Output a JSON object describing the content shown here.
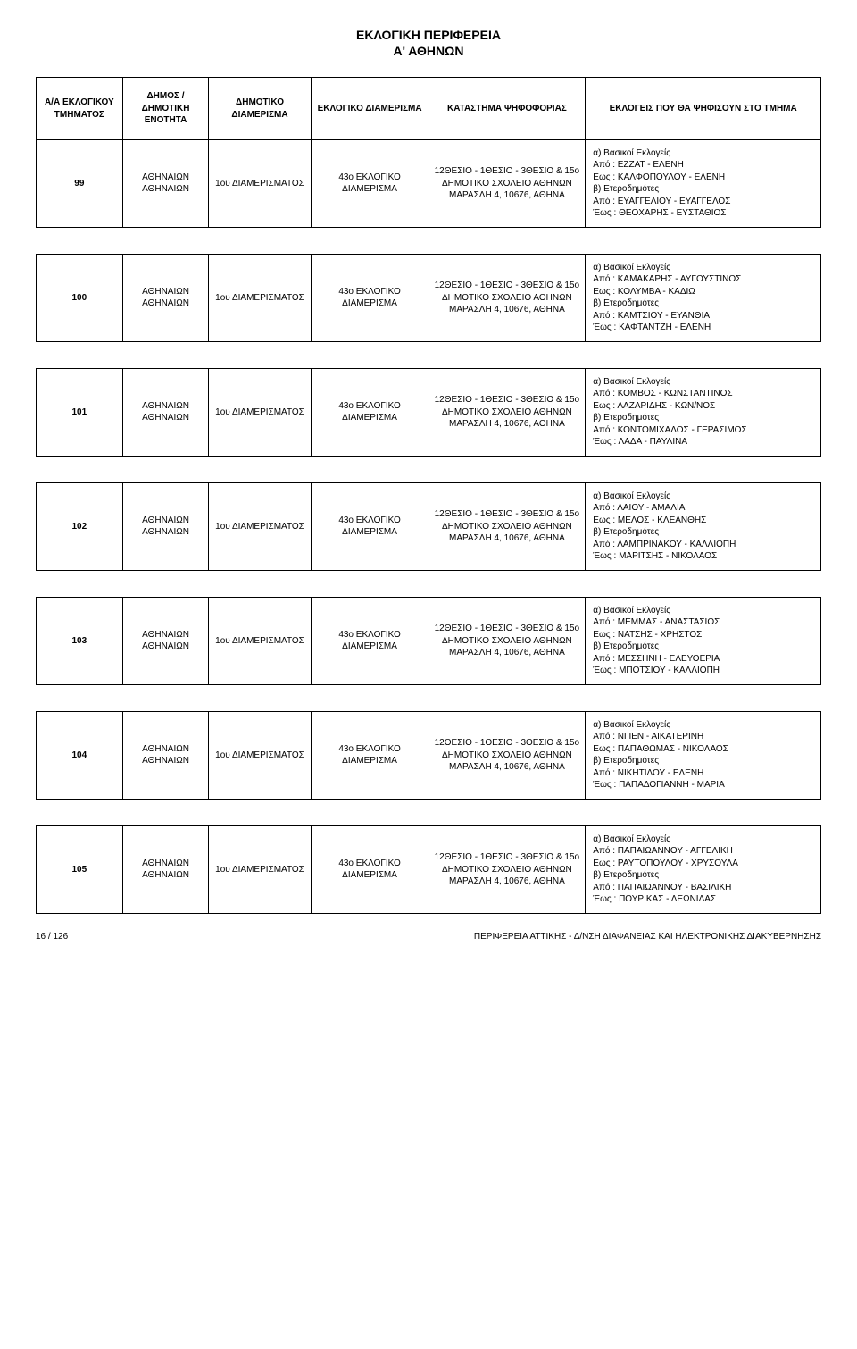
{
  "title_line1": "ΕΚΛΟΓΙΚΗ ΠΕΡΙΦΕΡΕΙΑ",
  "title_line2": "Α' ΑΘΗΝΩΝ",
  "headers": {
    "aa": "Α/Α ΕΚΛΟΓΙΚΟΥ ΤΜΗΜΑΤΟΣ",
    "dimos": "ΔΗΜΟΣ / ΔΗΜΟΤΙΚΗ ΕΝΟΤΗΤΑ",
    "dimotiko": "ΔΗΜΟΤΙΚΟ ΔΙΑΜΕΡΙΣΜΑ",
    "eklogiko": "ΕΚΛΟΓΙΚΟ ΔΙΑΜΕΡΙΣΜΑ",
    "katastima": "ΚΑΤΑΣΤΗΜΑ ΨΗΦΟΦΟΡΙΑΣ",
    "eklogeis": "ΕΚΛΟΓΕΙΣ ΠΟΥ ΘΑ ΨΗΦΙΣΟΥΝ ΣΤΟ ΤΜΗΜΑ"
  },
  "common": {
    "dimos": "ΑΘΗΝΑΙΩΝ ΑΘΗΝΑΙΩΝ",
    "dimotiko": "1ου ΔΙΑΜΕΡΙΣΜΑΤΟΣ",
    "eklogiko": "43ο ΕΚΛΟΓΙΚΟ ΔΙΑΜΕΡΙΣΜΑ",
    "katastima": "12ΘΕΣΙΟ - 1ΘΕΣΙΟ - 3ΘΕΣΙΟ & 15ο ΔΗΜΟΤΙΚΟ ΣΧΟΛΕΙΟ ΑΘΗΝΩΝ ΜΑΡΑΣΛΗ 4, 10676, ΑΘΗΝΑ"
  },
  "rows": [
    {
      "aa": "99",
      "voters": "α) Βασικοί Εκλογείς\nΑπό : ΕΖΖΑΤ - ΕΛΕΝΗ\nΕως : ΚΑΛΦΟΠΟΥΛΟΥ - ΕΛΕΝΗ\nβ) Ετεροδημότες\nΑπό : ΕΥΑΓΓΕΛΙΟΥ - ΕΥΑΓΓΕΛΟΣ\nΈως : ΘΕΟΧΑΡΗΣ - ΕΥΣΤΑΘΙΟΣ"
    },
    {
      "aa": "100",
      "voters": "α) Βασικοί Εκλογείς\nΑπό : ΚΑΜΑΚΑΡΗΣ - ΑΥΓΟΥΣΤΙΝΟΣ\nΕως : ΚΟΛΥΜΒΑ - ΚΑΔΙΩ\nβ) Ετεροδημότες\nΑπό : ΚΑΜΤΣΙΟΥ - ΕΥΑΝΘΙΑ\nΈως : ΚΑΦΤΑΝΤΖΗ - ΕΛΕΝΗ"
    },
    {
      "aa": "101",
      "voters": "α) Βασικοί Εκλογείς\nΑπό : ΚΟΜΒΟΣ - ΚΩΝΣΤΑΝΤΙΝΟΣ\nΕως : ΛΑΖΑΡΙΔΗΣ - ΚΩΝ/ΝΟΣ\nβ) Ετεροδημότες\nΑπό : ΚΟΝΤΟΜΙΧΑΛΟΣ - ΓΕΡΑΣΙΜΟΣ\nΈως : ΛΑΔΑ - ΠΑΥΛΙΝΑ"
    },
    {
      "aa": "102",
      "voters": "α) Βασικοί Εκλογείς\nΑπό : ΛΑΙΟΥ - ΑΜΑΛΙΑ\nΕως : ΜΕΛΟΣ - ΚΛΕΑΝΘΗΣ\nβ) Ετεροδημότες\nΑπό : ΛΑΜΠΡΙΝΑΚΟΥ - ΚΑΛΛΙΟΠΗ\nΈως : ΜΑΡΙΤΣΗΣ - ΝΙΚΟΛΑΟΣ"
    },
    {
      "aa": "103",
      "voters": "α) Βασικοί Εκλογείς\nΑπό : ΜΕΜΜΑΣ - ΑΝΑΣΤΑΣΙΟΣ\nΕως : ΝΑΤΣΗΣ - ΧΡΗΣΤΟΣ\nβ) Ετεροδημότες\nΑπό : ΜΕΣΣΗΝΗ - ΕΛΕΥΘΕΡΙΑ\nΈως : ΜΠΟΤΣΙΟΥ - ΚΑΛΛΙΟΠΗ"
    },
    {
      "aa": "104",
      "voters": "α) Βασικοί Εκλογείς\nΑπό : ΝΓΙΕΝ - ΑΙΚΑΤΕΡΙΝΗ\nΕως : ΠΑΠΑΘΩΜΑΣ - ΝΙΚΟΛΑΟΣ\nβ) Ετεροδημότες\nΑπό : ΝΙΚΗΤΙΔΟΥ - ΕΛΕΝΗ\nΈως : ΠΑΠΑΔΟΓΙΑΝΝΗ - ΜΑΡΙΑ"
    },
    {
      "aa": "105",
      "voters": "α) Βασικοί Εκλογείς\nΑπό : ΠΑΠΑΙΩΑΝΝΟΥ - ΑΓΓΕΛΙΚΗ\nΕως : ΡΑΥΤΟΠΟΥΛΟΥ - ΧΡΥΣΟΥΛΑ\nβ) Ετεροδημότες\nΑπό : ΠΑΠΑΙΩΑΝΝΟΥ - ΒΑΣΙΛΙΚΗ\nΈως : ΠΟΥΡΙΚΑΣ - ΛΕΩΝΙΔΑΣ"
    }
  ],
  "footer": {
    "left": "16 / 126",
    "right": "ΠΕΡΙΦΕΡΕΙΑ ΑΤΤΙΚΗΣ - Δ/ΝΣΗ ΔΙΑΦΑΝΕΙΑΣ ΚΑΙ ΗΛΕΚΤΡΟΝΙΚΗΣ ΔΙΑΚΥΒΕΡΝΗΣΗΣ"
  }
}
